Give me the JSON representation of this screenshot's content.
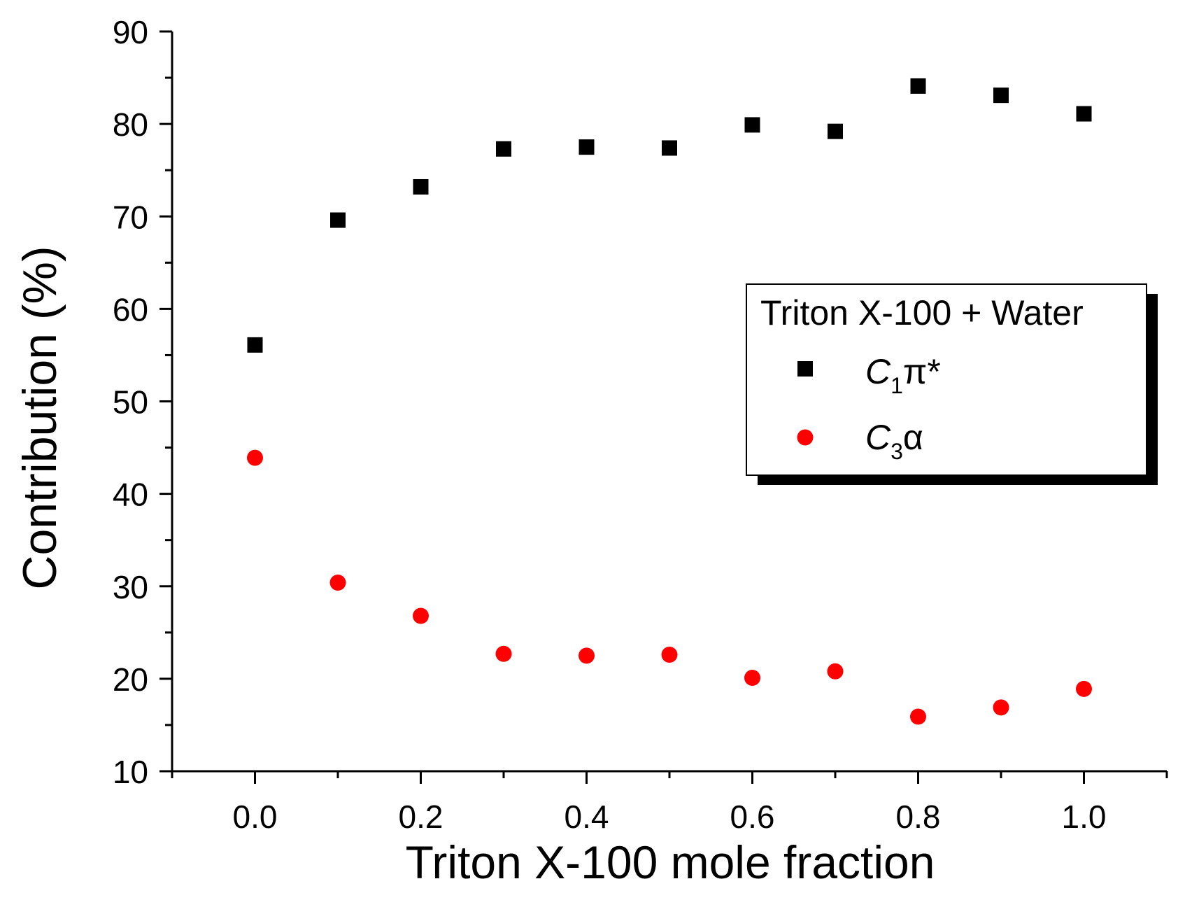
{
  "chart_data": {
    "type": "scatter",
    "title": "",
    "xlabel": "Triton X-100 mole fraction",
    "ylabel": "Contribution (%)",
    "xlim": [
      -0.1,
      1.1
    ],
    "ylim": [
      10,
      90
    ],
    "x_ticks": [
      0.0,
      0.2,
      0.4,
      0.6,
      0.8,
      1.0
    ],
    "x_tick_labels": [
      "0.0",
      "0.2",
      "0.4",
      "0.6",
      "0.8",
      "1.0"
    ],
    "x_minor_ticks": [
      -0.1,
      0.1,
      0.3,
      0.5,
      0.7,
      0.9,
      1.1
    ],
    "y_ticks": [
      10,
      20,
      30,
      40,
      50,
      60,
      70,
      80,
      90
    ],
    "y_tick_labels": [
      "10",
      "20",
      "30",
      "40",
      "50",
      "60",
      "70",
      "80",
      "90"
    ],
    "y_minor_ticks": [
      15,
      25,
      35,
      45,
      55,
      65,
      75,
      85
    ],
    "grid": false,
    "legend": {
      "title": "Triton X-100 + Water",
      "placement": "right",
      "entries": [
        {
          "symbol": "C",
          "subscript": "1",
          "suffix": "π*"
        },
        {
          "symbol": "C",
          "subscript": "3",
          "suffix": "α"
        }
      ]
    },
    "x": [
      0.0,
      0.1,
      0.2,
      0.3,
      0.4,
      0.5,
      0.6,
      0.7,
      0.8,
      0.9,
      1.0
    ],
    "series": [
      {
        "name": "C1π*",
        "marker": "square",
        "color": "#000000",
        "values": [
          56.1,
          69.6,
          73.2,
          77.3,
          77.5,
          77.4,
          79.9,
          79.2,
          84.1,
          83.1,
          81.1
        ]
      },
      {
        "name": "C3α",
        "marker": "circle",
        "color": "#ff0000",
        "values": [
          43.9,
          30.4,
          26.8,
          22.7,
          22.5,
          22.6,
          20.1,
          20.8,
          15.9,
          16.9,
          18.9
        ]
      }
    ]
  }
}
